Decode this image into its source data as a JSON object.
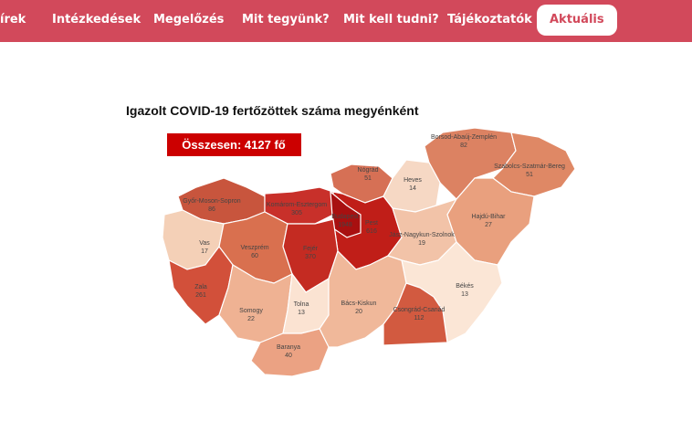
{
  "nav": {
    "items": [
      "írek",
      "Intézkedések",
      "Megelőzés",
      "Mit tegyünk?",
      "Mit kell tudni?",
      "Tájékoztatók",
      "Aktuális"
    ]
  },
  "map": {
    "title": "Igazolt COVID-19 fertőzöttek száma megyénként",
    "total": "Összesen: 4127 fő",
    "counties": [
      {
        "name": "Borsod-Abaúj-Zemplén",
        "value": 82
      },
      {
        "name": "Szabolcs-Szatmár-Bereg",
        "value": 51
      },
      {
        "name": "Nógrád",
        "value": 51
      },
      {
        "name": "Heves",
        "value": 14
      },
      {
        "name": "Győr-Moson-Sopron",
        "value": 86
      },
      {
        "name": "Komárom-Esztergom",
        "value": 305
      },
      {
        "name": "Budapest",
        "value": 1948
      },
      {
        "name": "Pest",
        "value": 616
      },
      {
        "name": "Jász-Nagykun-Szolnok",
        "value": 19
      },
      {
        "name": "Hajdú-Bihar",
        "value": 27
      },
      {
        "name": "Vas",
        "value": 17
      },
      {
        "name": "Veszprém",
        "value": 60
      },
      {
        "name": "Fejér",
        "value": 370
      },
      {
        "name": "Zala",
        "value": 261
      },
      {
        "name": "Békés",
        "value": 13
      },
      {
        "name": "Somogy",
        "value": 22
      },
      {
        "name": "Tolna",
        "value": 13
      },
      {
        "name": "Bács-Kiskun",
        "value": 20
      },
      {
        "name": "Csongrád-Csanád",
        "value": 112
      },
      {
        "name": "Baranya",
        "value": 40
      }
    ]
  }
}
